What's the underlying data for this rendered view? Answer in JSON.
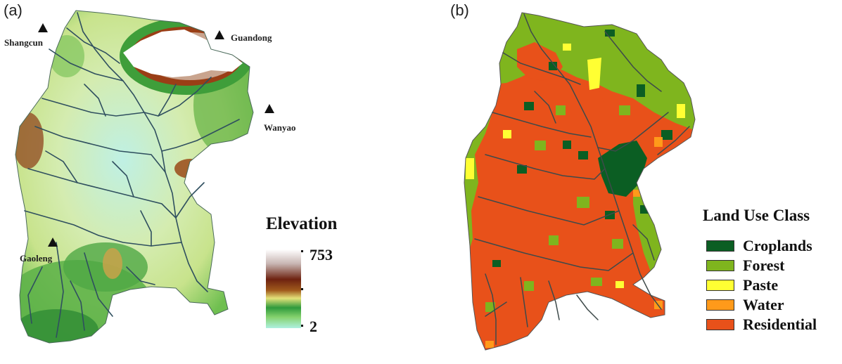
{
  "panel_a": {
    "label": "(a)",
    "stations": [
      {
        "name": "Shangcun"
      },
      {
        "name": "Guandong"
      },
      {
        "name": "Wanyao"
      },
      {
        "name": "Gaoleng"
      }
    ],
    "legend": {
      "title": "Elevation",
      "max": "753",
      "min": "2",
      "ramp_colors": [
        "#ffffff",
        "#c9b7b4",
        "#7a2a14",
        "#9c4a18",
        "#e6e27a",
        "#2f9a3c",
        "#7fcf6a",
        "#aef0e0"
      ]
    }
  },
  "panel_b": {
    "label": "(b)",
    "legend": {
      "title": "Land Use Class",
      "items": [
        {
          "label": "Croplands",
          "color": "#0b5e23"
        },
        {
          "label": "Forest",
          "color": "#7fb51e"
        },
        {
          "label": "Paste",
          "color": "#ffff33"
        },
        {
          "label": "Water",
          "color": "#ff9a1a"
        },
        {
          "label": "Residential",
          "color": "#e8511a"
        }
      ]
    }
  },
  "colors": {
    "river": "#2f4f5f",
    "elev_low": "#bff0e4",
    "elev_mid": "#d9ec9a",
    "elev_green": "#3f9e3a",
    "elev_brown": "#8b3a14",
    "elev_high": "#ffffff"
  }
}
